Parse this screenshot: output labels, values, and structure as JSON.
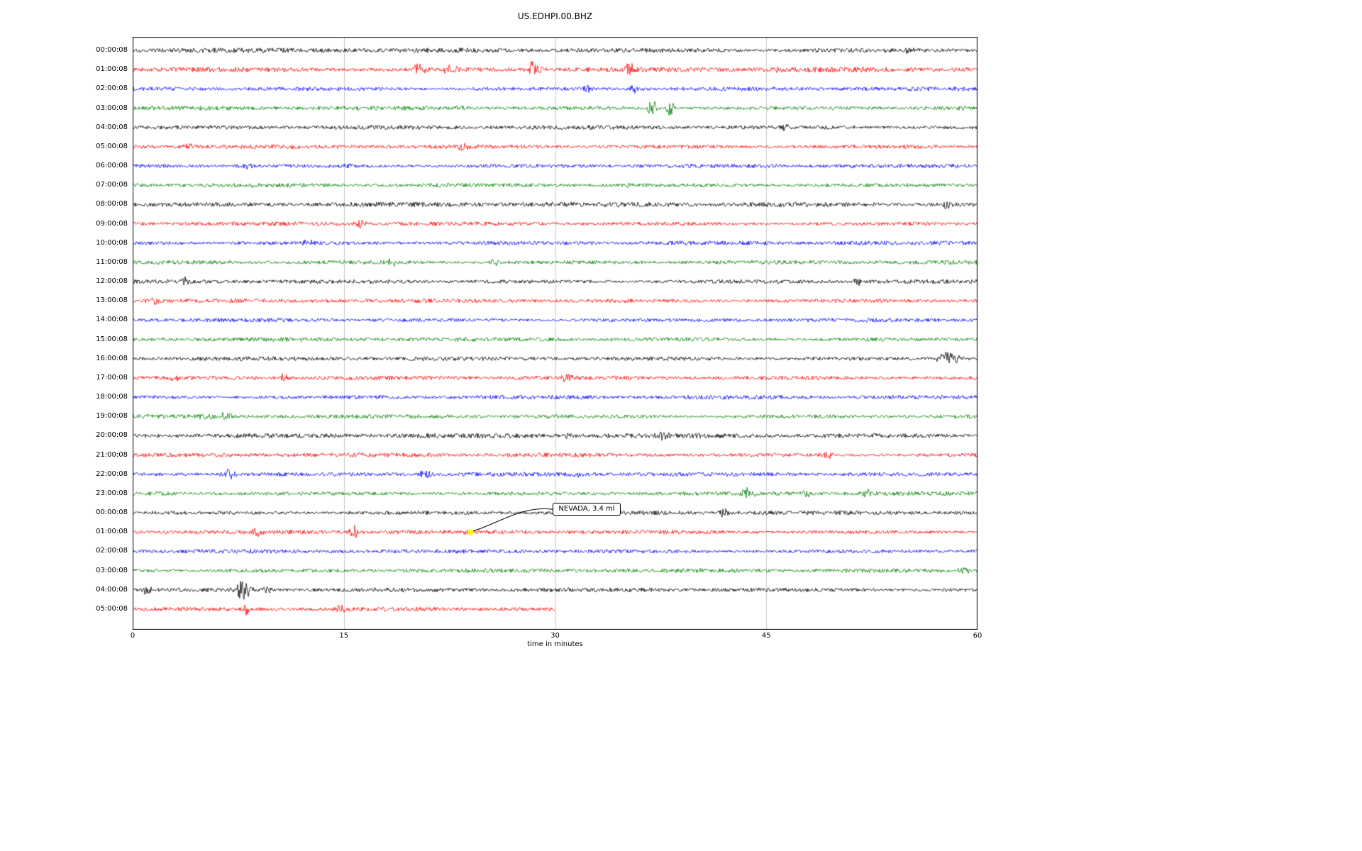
{
  "chart_data": {
    "type": "line",
    "title": "US.EDHPI.00.BHZ",
    "xlabel": "time in minutes",
    "xlim": [
      0,
      60
    ],
    "x_ticks": [
      0,
      15,
      30,
      45,
      60
    ],
    "grid": "vertical-only",
    "colors": {
      "black": "#000000",
      "red": "#ff0000",
      "blue": "#0000ff",
      "green": "#008000",
      "grid": "#c9c9c9",
      "frame": "#000000",
      "marker": "#ffff00"
    },
    "annotation": {
      "text": "NEVADA, 3.4 ml",
      "row_index": 25,
      "minute": 24,
      "marker": "yellow-dot"
    },
    "rows": [
      {
        "label": "00:00:08",
        "color": "black",
        "base_amp": 2.4,
        "events": [
          {
            "minute": 55,
            "amp": 4
          }
        ]
      },
      {
        "label": "01:00:08",
        "color": "red",
        "base_amp": 2.6,
        "events": [
          {
            "minute": 20.3,
            "amp": 8
          },
          {
            "minute": 22.6,
            "amp": 7
          },
          {
            "minute": 28.4,
            "amp": 14,
            "width": 4
          },
          {
            "minute": 29.1,
            "amp": 9,
            "width": 4
          },
          {
            "minute": 35.3,
            "amp": 13,
            "width": 4
          },
          {
            "minute": 45.8,
            "amp": 4
          }
        ]
      },
      {
        "label": "02:00:08",
        "color": "blue",
        "events": [
          {
            "minute": 32.2,
            "amp": 5
          },
          {
            "minute": 35.6,
            "amp": 5
          }
        ]
      },
      {
        "label": "03:00:08",
        "color": "green",
        "events": [
          {
            "minute": 23.4,
            "amp": 4
          },
          {
            "minute": 36.9,
            "amp": 15,
            "width": 4
          },
          {
            "minute": 38.2,
            "amp": 13,
            "width": 4
          }
        ]
      },
      {
        "label": "04:00:08",
        "color": "black",
        "events": [
          {
            "minute": 46.3,
            "amp": 4
          }
        ]
      },
      {
        "label": "05:00:08",
        "color": "red",
        "events": [
          {
            "minute": 4,
            "amp": 4
          },
          {
            "minute": 23.5,
            "amp": 5
          }
        ]
      },
      {
        "label": "06:00:08",
        "color": "blue",
        "events": [
          {
            "minute": 8,
            "amp": 4
          },
          {
            "minute": 15.4,
            "amp": 4
          }
        ]
      },
      {
        "label": "07:00:08",
        "color": "green",
        "events": [
          {
            "minute": 35.6,
            "amp": 4
          }
        ]
      },
      {
        "label": "08:00:08",
        "color": "black",
        "base_amp": 2.5,
        "events": [
          {
            "minute": 57.8,
            "amp": 5
          }
        ]
      },
      {
        "label": "09:00:08",
        "color": "red",
        "events": [
          {
            "minute": 16.1,
            "amp": 5
          }
        ]
      },
      {
        "label": "10:00:08",
        "color": "blue",
        "events": [
          {
            "minute": 12.4,
            "amp": 4
          }
        ]
      },
      {
        "label": "11:00:08",
        "color": "green",
        "events": [
          {
            "minute": 18.4,
            "amp": 5
          },
          {
            "minute": 25.6,
            "amp": 5
          }
        ]
      },
      {
        "label": "12:00:08",
        "color": "black",
        "events": [
          {
            "minute": 3.6,
            "amp": 5
          },
          {
            "minute": 51.6,
            "amp": 5
          }
        ]
      },
      {
        "label": "13:00:08",
        "color": "red",
        "events": [
          {
            "minute": 1.5,
            "amp": 5
          }
        ]
      },
      {
        "label": "14:00:08",
        "color": "blue",
        "events": []
      },
      {
        "label": "15:00:08",
        "color": "green",
        "events": []
      },
      {
        "label": "16:00:08",
        "color": "black",
        "events": [
          {
            "minute": 58,
            "amp": 9,
            "width": 12
          }
        ]
      },
      {
        "label": "17:00:08",
        "color": "red",
        "events": [
          {
            "minute": 3,
            "amp": 4
          },
          {
            "minute": 10.8,
            "amp": 5
          },
          {
            "minute": 30.9,
            "amp": 5
          }
        ]
      },
      {
        "label": "18:00:08",
        "color": "blue",
        "events": []
      },
      {
        "label": "19:00:08",
        "color": "green",
        "events": [
          {
            "minute": 5,
            "amp": 5
          },
          {
            "minute": 6.6,
            "amp": 5
          }
        ]
      },
      {
        "label": "20:00:08",
        "color": "black",
        "base_amp": 2.5,
        "events": [
          {
            "minute": 30.9,
            "amp": 5
          },
          {
            "minute": 37.6,
            "amp": 6
          }
        ]
      },
      {
        "label": "21:00:08",
        "color": "red",
        "events": [
          {
            "minute": 49.4,
            "amp": 5
          }
        ]
      },
      {
        "label": "22:00:08",
        "color": "blue",
        "events": [
          {
            "minute": 6.9,
            "amp": 8
          },
          {
            "minute": 20.8,
            "amp": 8
          },
          {
            "minute": 31.6,
            "amp": 5
          }
        ]
      },
      {
        "label": "23:00:08",
        "color": "green",
        "events": [
          {
            "minute": 43.7,
            "amp": 9
          },
          {
            "minute": 47.9,
            "amp": 5
          },
          {
            "minute": 52.1,
            "amp": 5
          }
        ]
      },
      {
        "label": "00:00:08",
        "color": "black",
        "events": [
          {
            "minute": 42,
            "amp": 5
          }
        ]
      },
      {
        "label": "01:00:08",
        "color": "red",
        "events": [
          {
            "minute": 8.7,
            "amp": 6
          },
          {
            "minute": 15.7,
            "amp": 12,
            "width": 4
          },
          {
            "minute": 24,
            "amp": 4
          }
        ]
      },
      {
        "label": "02:00:08",
        "color": "blue",
        "events": []
      },
      {
        "label": "03:00:08",
        "color": "green",
        "events": [
          {
            "minute": 59,
            "amp": 4
          }
        ]
      },
      {
        "label": "04:00:08",
        "color": "black",
        "events": [
          {
            "minute": 1,
            "amp": 5
          },
          {
            "minute": 7.9,
            "amp": 15,
            "width": 8
          },
          {
            "minute": 9.6,
            "amp": 6
          }
        ]
      },
      {
        "label": "05:00:08",
        "color": "red",
        "end_minute": 30,
        "events": [
          {
            "minute": 8.1,
            "amp": 8,
            "width": 3
          },
          {
            "minute": 14.8,
            "amp": 5
          }
        ]
      }
    ]
  }
}
